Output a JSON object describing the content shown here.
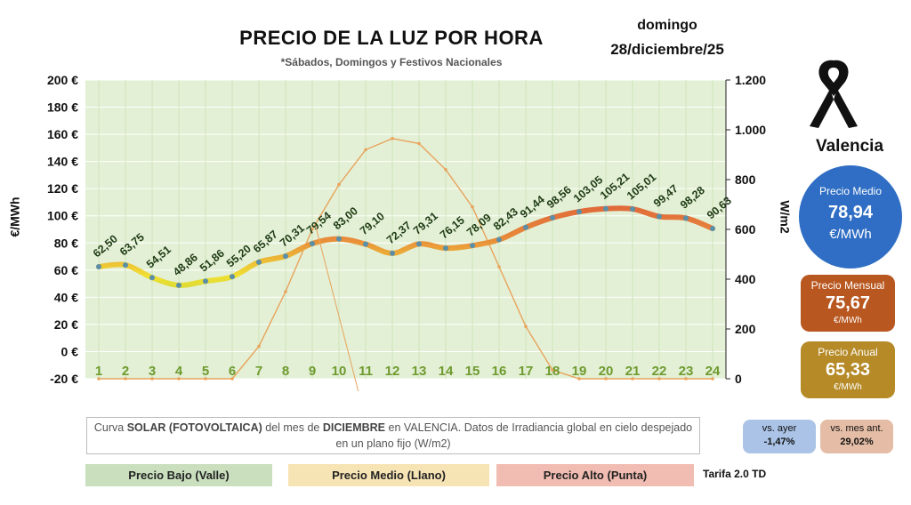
{
  "header": {
    "title": "PRECIO DE LA LUZ POR HORA",
    "subtitle": "*Sábados, Domingos y Festivos Nacionales",
    "day": "domingo",
    "date": "28/diciembre/25"
  },
  "axes": {
    "left_label": "€/MWh",
    "right_label": "W/m2"
  },
  "chart_data": {
    "type": "line",
    "x": [
      1,
      2,
      3,
      4,
      5,
      6,
      7,
      8,
      9,
      10,
      11,
      12,
      13,
      14,
      15,
      16,
      17,
      18,
      19,
      20,
      21,
      22,
      23,
      24
    ],
    "x_tick_labels": [
      "1",
      "2",
      "3",
      "4",
      "5",
      "6",
      "7",
      "8",
      "9",
      "10",
      "11",
      "12",
      "13",
      "14",
      "15",
      "16",
      "17",
      "18",
      "19",
      "20",
      "21",
      "22",
      "23",
      "24"
    ],
    "left_axis": {
      "label": "€/MWh",
      "ylim": [
        -20,
        200
      ],
      "ticks": [
        -20,
        0,
        20,
        40,
        60,
        80,
        100,
        120,
        140,
        160,
        180,
        200
      ],
      "tick_labels": [
        "-20 €",
        "0 €",
        "20 €",
        "40 €",
        "60 €",
        "80 €",
        "100 €",
        "120 €",
        "140 €",
        "160 €",
        "180 €",
        "200 €"
      ]
    },
    "right_axis": {
      "label": "W/m2",
      "ylim": [
        0,
        1200
      ],
      "ticks": [
        0,
        200,
        400,
        600,
        800,
        1000,
        1200
      ],
      "tick_labels": [
        "0",
        "200",
        "400",
        "600",
        "800",
        "1.000",
        "1.200"
      ]
    },
    "series": [
      {
        "axis": "left",
        "values": [
          62.5,
          63.75,
          54.51,
          48.86,
          51.86,
          55.2,
          65.87,
          70.31,
          79.54,
          83.0,
          79.1,
          72.37,
          79.31,
          76.15,
          78.09,
          82.43,
          91.44,
          98.56,
          103.05,
          105.21,
          105.01,
          99.47,
          98.28,
          90.63
        ],
        "data_labels": [
          "62,50",
          "63,75",
          "54,51",
          "48,86",
          "51,86",
          "55,20",
          "65,87",
          "70,31",
          "79,54",
          "83,00",
          "79,10",
          "72,37",
          "79,31",
          "76,15",
          "78,09",
          "82,43",
          "91,44",
          "98,56",
          "103,05",
          "105,21",
          "105,01",
          "99,47",
          "98,28",
          "90,63"
        ]
      },
      {
        "axis": "right",
        "values": [
          0,
          0,
          0,
          0,
          0,
          0,
          130,
          350,
          600,
          780,
          920,
          965,
          945,
          840,
          690,
          450,
          210,
          35,
          0,
          0,
          0,
          0,
          0,
          0
        ]
      }
    ],
    "grid": true,
    "colors": {
      "plot_background": "#e3f0d5",
      "solar_line": "#e8a35c",
      "price_low": "#8cc63f",
      "price_mid": "#f0e032",
      "price_high": "#e06a3a",
      "marker": "#5b8fa8"
    }
  },
  "sidebar": {
    "city": "Valencia",
    "average": {
      "label": "Precio Medio",
      "value": "78,94",
      "unit": "€/MWh"
    },
    "monthly": {
      "label": "Precio Mensual",
      "value": "75,67",
      "unit": "€/MWh"
    },
    "annual": {
      "label": "Precio Anual",
      "value": "65,33",
      "unit": "€/MWh"
    }
  },
  "note": {
    "t1": "Curva ",
    "b1": "SOLAR (FOTOVOLTAICA)",
    "t2": " del mes de ",
    "b2": "DICIEMBRE",
    "t3": " en VALENCIA. Datos de Irradiancia global en cielo despejado en un plano fijo (W/m2)"
  },
  "comparison": {
    "yesterday": {
      "label": "vs. ayer",
      "value": "-1,47%"
    },
    "prev_month": {
      "label": "vs. mes ant.",
      "value": "29,02%"
    }
  },
  "legend": {
    "low": "Precio Bajo (Valle)",
    "mid": "Precio Medio (Llano)",
    "high": "Precio Alto (Punta)"
  },
  "tariff": "Tarifa 2.0 TD"
}
